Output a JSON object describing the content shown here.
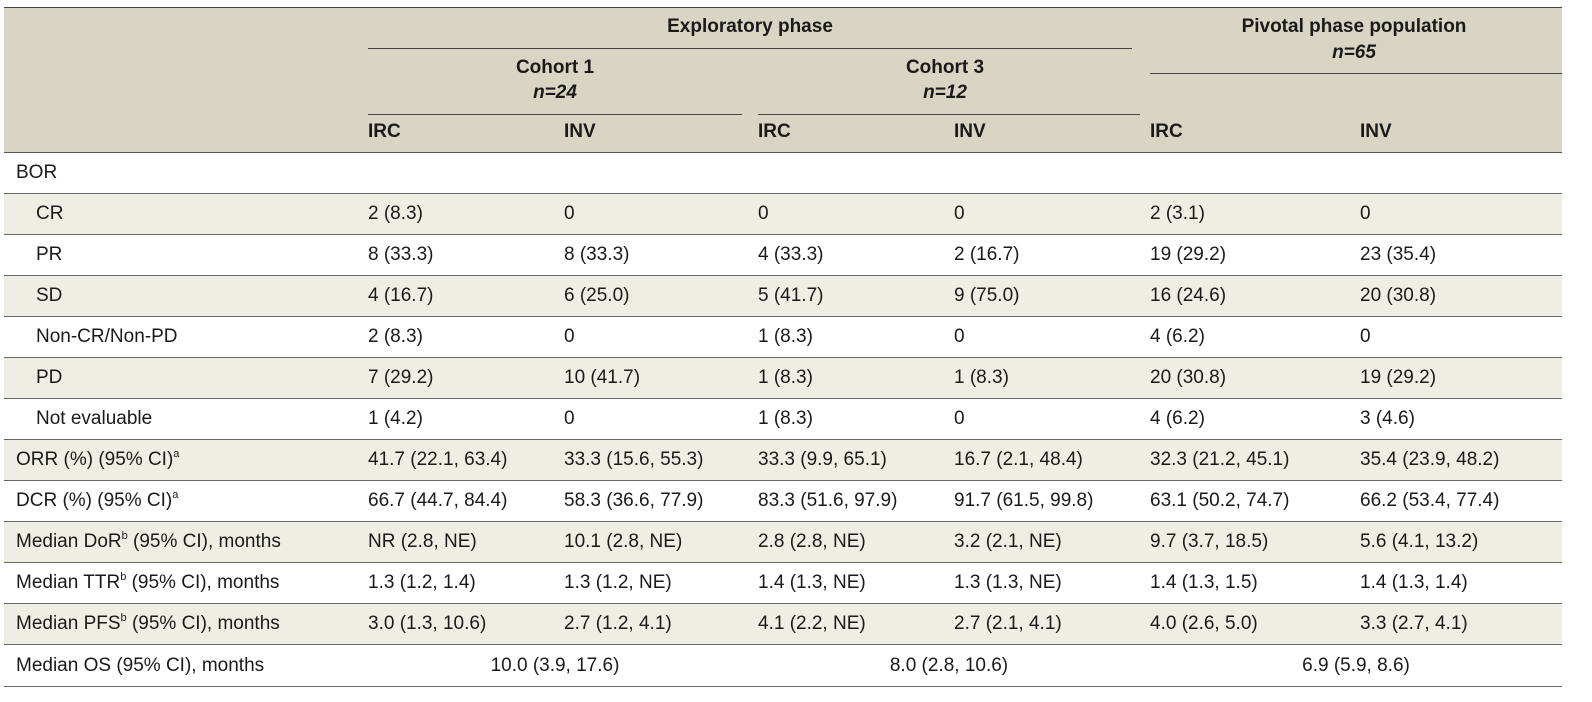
{
  "header": {
    "exploratory": "Exploratory phase",
    "pivotal": "Pivotal phase population",
    "pivotal_n": "n=65",
    "cohort1": "Cohort 1",
    "cohort1_n": "n=24",
    "cohort3": "Cohort 3",
    "cohort3_n": "n=12",
    "cols": [
      "IRC",
      "INV",
      "IRC",
      "INV",
      "IRC",
      "INV"
    ]
  },
  "rows": [
    {
      "label": "BOR",
      "indent": false,
      "shade": false,
      "values": [
        "",
        "",
        "",
        "",
        "",
        ""
      ]
    },
    {
      "label": "CR",
      "indent": true,
      "shade": true,
      "values": [
        "2 (8.3)",
        "0",
        "0",
        "0",
        "2 (3.1)",
        "0"
      ]
    },
    {
      "label": "PR",
      "indent": true,
      "shade": false,
      "values": [
        "8 (33.3)",
        "8 (33.3)",
        "4 (33.3)",
        "2 (16.7)",
        "19 (29.2)",
        "23 (35.4)"
      ]
    },
    {
      "label": "SD",
      "indent": true,
      "shade": true,
      "values": [
        "4 (16.7)",
        "6 (25.0)",
        "5 (41.7)",
        "9 (75.0)",
        "16 (24.6)",
        "20 (30.8)"
      ]
    },
    {
      "label": "Non-CR/Non-PD",
      "indent": true,
      "shade": false,
      "values": [
        "2 (8.3)",
        "0",
        "1 (8.3)",
        "0",
        "4 (6.2)",
        "0"
      ]
    },
    {
      "label": "PD",
      "indent": true,
      "shade": true,
      "values": [
        "7 (29.2)",
        "10 (41.7)",
        "1 (8.3)",
        "1 (8.3)",
        "20 (30.8)",
        "19 (29.2)"
      ]
    },
    {
      "label": "Not evaluable",
      "indent": true,
      "shade": false,
      "values": [
        "1 (4.2)",
        "0",
        "1 (8.3)",
        "0",
        "4 (6.2)",
        "3 (4.6)"
      ]
    },
    {
      "label": "ORR (%) (95% CI)",
      "sup": "a",
      "suffix": "",
      "indent": false,
      "shade": true,
      "values": [
        "41.7 (22.1, 63.4)",
        "33.3 (15.6, 55.3)",
        "33.3 (9.9, 65.1)",
        "16.7 (2.1, 48.4)",
        "32.3 (21.2, 45.1)",
        "35.4 (23.9, 48.2)"
      ]
    },
    {
      "label": "DCR (%) (95% CI)",
      "sup": "a",
      "suffix": "",
      "indent": false,
      "shade": false,
      "values": [
        "66.7 (44.7, 84.4)",
        "58.3 (36.6, 77.9)",
        "83.3 (51.6, 97.9)",
        "91.7 (61.5, 99.8)",
        "63.1 (50.2, 74.7)",
        "66.2 (53.4, 77.4)"
      ]
    },
    {
      "label": "Median DoR",
      "sup": "b",
      "suffix": " (95% CI), months",
      "indent": false,
      "shade": true,
      "values": [
        "NR (2.8, NE)",
        "10.1 (2.8, NE)",
        "2.8 (2.8, NE)",
        "3.2 (2.1, NE)",
        "9.7 (3.7, 18.5)",
        "5.6 (4.1, 13.2)"
      ]
    },
    {
      "label": "Median TTR",
      "sup": "b",
      "suffix": " (95% CI), months",
      "indent": false,
      "shade": false,
      "values": [
        "1.3 (1.2, 1.4)",
        "1.3 (1.2, NE)",
        "1.4 (1.3, NE)",
        "1.3 (1.3, NE)",
        "1.4 (1.3, 1.5)",
        "1.4 (1.3, 1.4)"
      ]
    },
    {
      "label": "Median PFS",
      "sup": "b",
      "suffix": " (95% CI), months",
      "indent": false,
      "shade": true,
      "values": [
        "3.0 (1.3, 10.6)",
        "2.7 (1.2, 4.1)",
        "4.1 (2.2, NE)",
        "2.7 (2.1, 4.1)",
        "4.0 (2.6, 5.0)",
        "3.3 (2.7, 4.1)"
      ]
    }
  ],
  "os_row": {
    "label": "Median OS (95% CI), months",
    "values": [
      "10.0 (3.9, 17.6)",
      "8.0 (2.8, 10.6)",
      "6.9 (5.9, 8.6)"
    ]
  }
}
